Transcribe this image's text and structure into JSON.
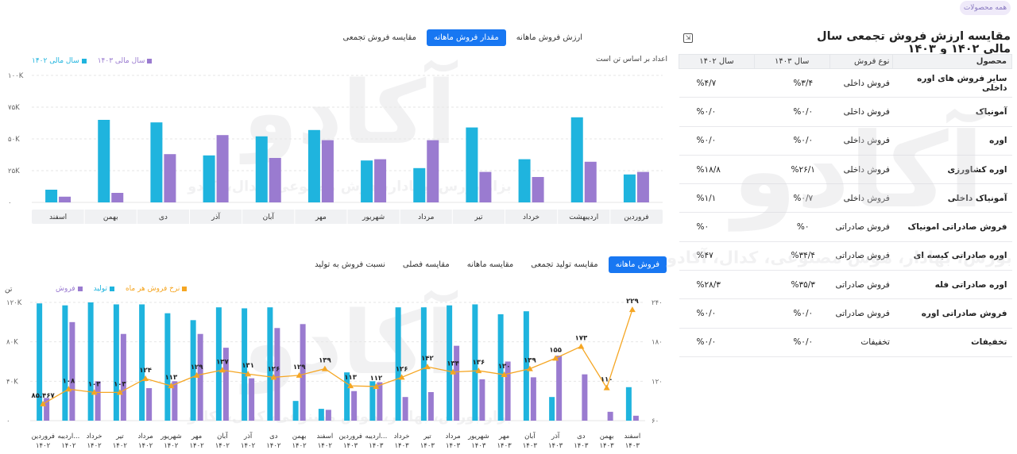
{
  "badge": "همه محصولات",
  "table": {
    "title": "مقایسه ارزش فروش تجمعی سال مالی ۱۴۰۲ و ۱۴۰۳",
    "headers": [
      "محصول",
      "نوع فروش",
      "سال ۱۴۰۳",
      "سال ۱۴۰۲"
    ],
    "rows": [
      [
        "سایر فروش های اوره داخلی",
        "فروش داخلی",
        "%۳/۴",
        "%۴/۷"
      ],
      [
        "آمونیاک",
        "فروش داخلی",
        "%۰/۰",
        "%۰/۰"
      ],
      [
        "اوره",
        "فروش داخلی",
        "%۰/۰",
        "%۰/۰"
      ],
      [
        "اوره کشاورزی",
        "فروش داخلی",
        "%۲۶/۱",
        "%۱۸/۸"
      ],
      [
        "آمونیاک داخلی",
        "فروش داخلی",
        "%۰/۷",
        "%۱/۱"
      ],
      [
        "فروش صادراتی امونیاک",
        "فروش صادراتی",
        "%۰",
        "%۰"
      ],
      [
        "اوره صادراتی کیسه ای",
        "فروش صادراتی",
        "%۳۴/۴",
        "%۴۷"
      ],
      [
        "اوره صادراتی فله",
        "فروش صادراتی",
        "%۳۵/۳",
        "%۲۸/۳"
      ],
      [
        "فروش صادراتی اوره",
        "فروش صادراتی",
        "%۰/۰",
        "%۰/۰"
      ],
      [
        "تخفیفات",
        "تخفیفات",
        "%۰/۰",
        "%۰/۰"
      ]
    ]
  },
  "top_tabs": [
    "ارزش فروش ماهانه",
    "مقدار فروش ماهانه",
    "مقایسه فروش تجمعی"
  ],
  "top_active": 1,
  "subtitle": "اعداد بر اساس تن است",
  "bottom_tabs": [
    "فروش ماهانه",
    "مقایسه تولید تجمعی",
    "مقایسه ماهانه",
    "مقایسه فصلی",
    "نسبت فروش به تولید"
  ],
  "bottom_active": 0,
  "unit_label": "تن",
  "watermark": {
    "logo": "آکادو",
    "tagline": "بزار بورس، بهادار، هوش مصنوعی، کدال، آکادو"
  },
  "colors": {
    "cyan": "#1fb4de",
    "purple": "#9a7bd0",
    "orange": "#f5a623",
    "axis": "#666",
    "grid": "#e6e6e6",
    "bandBg": "#f0f1f3"
  },
  "chart_data": [
    {
      "type": "bar",
      "categories": [
        "فروردین",
        "اردیبهشت",
        "خرداد",
        "تیر",
        "مرداد",
        "شهریور",
        "مهر",
        "آبان",
        "آذر",
        "دی",
        "بهمن",
        "اسفند"
      ],
      "series": [
        {
          "name": "سال مالی ۱۴۰۲",
          "color": "#1fb4de",
          "values": [
            22000,
            67000,
            34000,
            59000,
            27000,
            33000,
            57000,
            52000,
            37000,
            63000,
            65000,
            10000
          ]
        },
        {
          "name": "سال مالی ۱۴۰۳",
          "color": "#9a7bd0",
          "values": [
            24000,
            32000,
            20000,
            24000,
            49000,
            34000,
            49000,
            35000,
            53000,
            38000,
            7500,
            4500
          ]
        }
      ],
      "ylim": [
        0,
        100000
      ],
      "yticks": [
        0,
        25000,
        50000,
        75000,
        100000
      ],
      "ytick_labels": [
        "۰",
        "۲۵K",
        "۵۰K",
        "۷۵K",
        "۱۰۰K"
      ],
      "legend_placement": "top-left",
      "grid": true
    },
    {
      "type": "bar",
      "categories": [
        "فروردین ۱۴۰۲",
        "اردیبه... ۱۴۰۲",
        "خرداد ۱۴۰۲",
        "تیر ۱۴۰۲",
        "مرداد ۱۴۰۲",
        "شهریور ۱۴۰۲",
        "مهر ۱۴۰۲",
        "آبان ۱۴۰۲",
        "آذر ۱۴۰۲",
        "دی ۱۴۰۲",
        "بهمن ۱۴۰۲",
        "اسفند ۱۴۰۲",
        "فروردین ۱۴۰۳",
        "اردیبه... ۱۴۰۳",
        "خرداد ۱۴۰۳",
        "تیر ۱۴۰۳",
        "مرداد ۱۴۰۳",
        "شهریور ۱۴۰۳",
        "مهر ۱۴۰۳",
        "آبان ۱۴۰۳",
        "آذر ۱۴۰۳",
        "دی ۱۴۰۳",
        "بهمن ۱۴۰۳",
        "اسفند ۱۴۰۳"
      ],
      "series": [
        {
          "name": "تولید",
          "color": "#1fb4de",
          "axis": "left",
          "values": [
            119000,
            117000,
            120000,
            118000,
            118000,
            109000,
            102000,
            115000,
            114000,
            115000,
            20000,
            12000,
            49000,
            40000,
            115000,
            115000,
            117000,
            118000,
            108000,
            111000,
            24000,
            0,
            0,
            34000
          ]
        },
        {
          "name": "فروش",
          "color": "#9a7bd0",
          "axis": "left",
          "values": [
            23000,
            100000,
            40000,
            88000,
            33000,
            40000,
            88000,
            74000,
            43000,
            94000,
            98000,
            11000,
            30000,
            39000,
            24000,
            29000,
            76000,
            42000,
            60000,
            44000,
            66000,
            47000,
            9000,
            5000
          ]
        },
        {
          "name": "نرخ فروش هر ماه",
          "color": "#f5a623",
          "axis": "right",
          "type": "line",
          "values": [
            85.467,
            108,
            103,
            103,
            124,
            113,
            129,
            137,
            131,
            126,
            129,
            139,
            113,
            112,
            126,
            142,
            134,
            136,
            130,
            139,
            155,
            173,
            110,
            229
          ],
          "labels": [
            "۸۵.۴۶۷",
            "۱۰۸",
            "۱۰۳",
            "۱۰۳",
            "۱۲۴",
            "۱۱۳",
            "۱۲۹",
            "۱۳۷",
            "۱۳۱",
            "۱۲۶",
            "۱۲۹",
            "۱۳۹",
            "۱۱۳",
            "۱۱۲",
            "۱۲۶",
            "۱۴۲",
            "۱۳۴",
            "۱۳۶",
            "۱۳۰",
            "۱۳۹",
            "۱۵۵",
            "۱۷۳",
            "۱۱۰",
            "۲۲۹"
          ]
        }
      ],
      "ylim": [
        0,
        120000
      ],
      "yticks": [
        0,
        40000,
        80000,
        120000
      ],
      "ytick_labels": [
        "۰",
        "۴۰K",
        "۸۰K",
        "۱۲۰K"
      ],
      "y2lim": [
        60,
        240
      ],
      "y2ticks": [
        60,
        120,
        180,
        240
      ],
      "y2tick_labels": [
        "۶۰",
        "۱۲۰",
        "۱۸۰",
        "۲۴۰"
      ],
      "legend_placement": "top-left",
      "grid": true
    }
  ]
}
